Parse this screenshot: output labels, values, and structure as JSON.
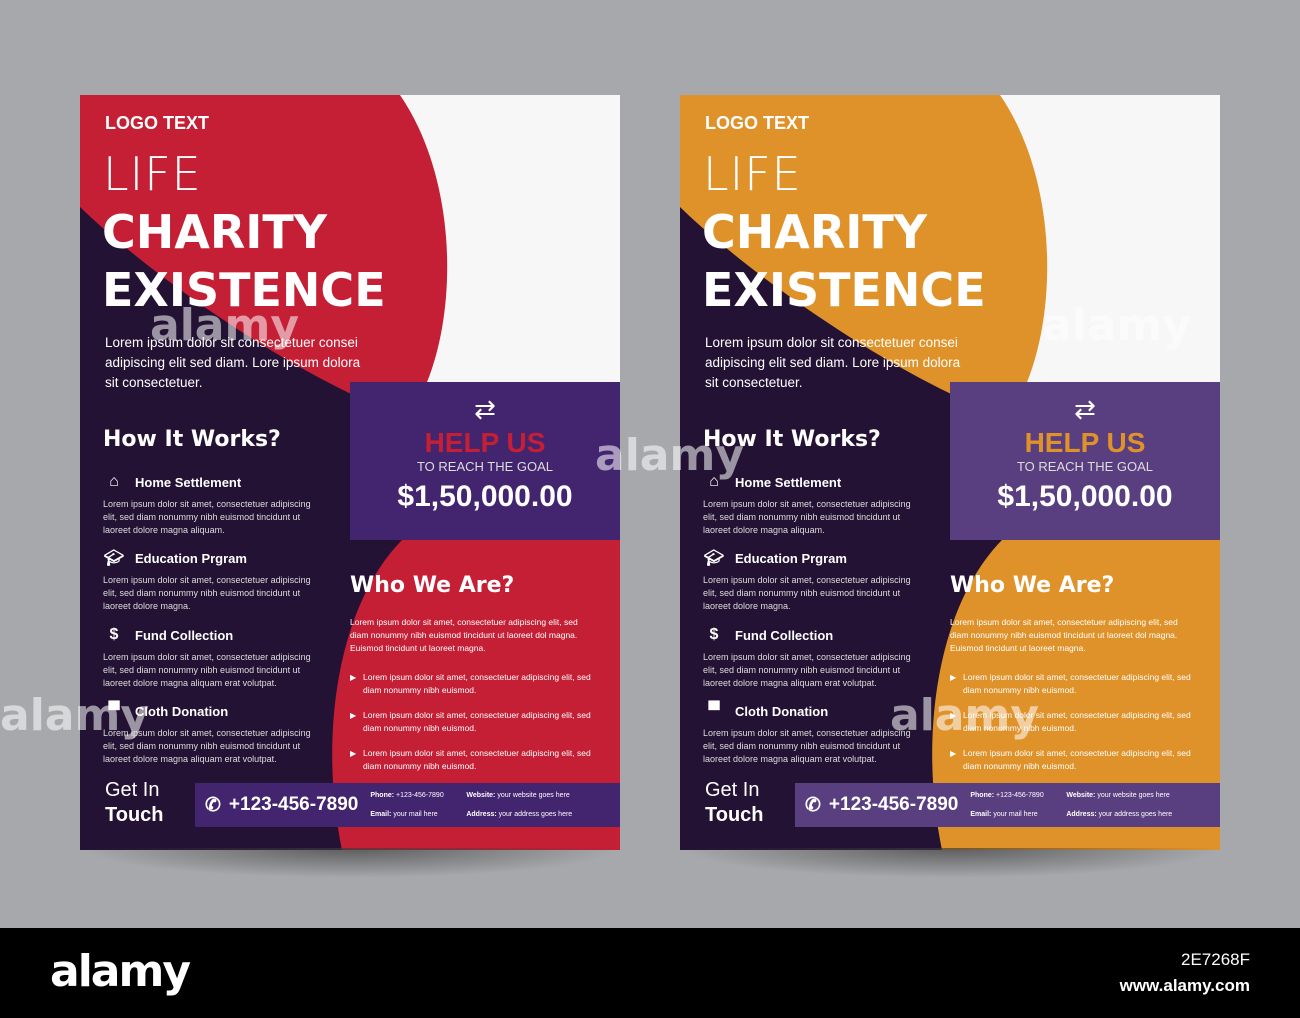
{
  "flyers": [
    {
      "accent": "#c41f35",
      "box": "#43246f",
      "logo": "LOGO TEXT",
      "l1": "LIFE",
      "l2": "CHARITY",
      "l3": "EXISTENCE",
      "intro": "Lorem ipsum dolor sit consectetuer consei adipiscing elit sed diam. Lore ipsum dolora sit consectetuer.",
      "how": "How It Works?",
      "items": [
        {
          "icon": "home-icon",
          "title": "Home Settlement",
          "desc": "Lorem ipsum dolor sit amet, consectetuer adipiscing elit, sed diam nonummy nibh euismod tincidunt ut laoreet dolore magna aliquam."
        },
        {
          "icon": "graduation-cap-icon",
          "title": "Education Prgram",
          "desc": "Lorem ipsum dolor sit amet, consectetuer adipiscing elit, sed diam nonummy nibh euismod tincidunt ut laoreet dolore magna."
        },
        {
          "icon": "money-bag-icon",
          "title": "Fund Collection",
          "desc": "Lorem ipsum dolor sit amet, consectetuer adipiscing elit, sed diam nonummy nibh euismod tincidunt ut laoreet dolore magna aliquam erat volutpat."
        },
        {
          "icon": "shirt-icon",
          "title": "Cloth Donation",
          "desc": "Lorem ipsum dolor sit amet, consectetuer adipiscing elit, sed diam nonummy nibh euismod tincidunt ut laoreet dolore magna aliquam erat volutpat."
        }
      ],
      "help": "HELP US",
      "reach": "TO REACH THE GOAL",
      "amount": "$1,50,000.00",
      "who": "Who We Are?",
      "who_text": "Lorem ipsum dolor sit amet, consectetuer adipiscing elit, sed diam nonummy nibh euismod tincidunt ut laoreet dol magna. Euismod tincidunt ut laoreet magna.",
      "bullets": [
        "Lorem ipsum dolor sit amet, consectetuer adipiscing elit, sed diam nonummy nibh euismod.",
        "Lorem ipsum dolor sit amet, consectetuer adipiscing elit, sed diam nonummy nibh euismod.",
        "Lorem ipsum dolor sit amet, consectetuer adipiscing elit, sed diam nonummy nibh euismod."
      ],
      "get": "Get In",
      "touch": "Touch",
      "phone": "+123-456-7890",
      "phone_label": "Phone:",
      "phone_val": "+123-456-7890",
      "web_label": "Website:",
      "web_val": "your website goes here",
      "email_label": "Email:",
      "email_val": "your mail here",
      "addr_label": "Address:",
      "addr_val": "your address goes here"
    },
    {
      "accent": "#e0922a",
      "box": "#5a3f80",
      "logo": "LOGO TEXT",
      "l1": "LIFE",
      "l2": "CHARITY",
      "l3": "EXISTENCE",
      "intro": "Lorem ipsum dolor sit consectetuer consei adipiscing elit sed diam. Lore ipsum dolora sit consectetuer.",
      "how": "How It Works?",
      "items": [
        {
          "icon": "home-icon",
          "title": "Home Settlement",
          "desc": "Lorem ipsum dolor sit amet, consectetuer adipiscing elit, sed diam nonummy nibh euismod tincidunt ut laoreet dolore magna aliquam."
        },
        {
          "icon": "graduation-cap-icon",
          "title": "Education Prgram",
          "desc": "Lorem ipsum dolor sit amet, consectetuer adipiscing elit, sed diam nonummy nibh euismod tincidunt ut laoreet dolore magna."
        },
        {
          "icon": "money-bag-icon",
          "title": "Fund Collection",
          "desc": "Lorem ipsum dolor sit amet, consectetuer adipiscing elit, sed diam nonummy nibh euismod tincidunt ut laoreet dolore magna aliquam erat volutpat."
        },
        {
          "icon": "shirt-icon",
          "title": "Cloth Donation",
          "desc": "Lorem ipsum dolor sit amet, consectetuer adipiscing elit, sed diam nonummy nibh euismod tincidunt ut laoreet dolore magna aliquam erat volutpat."
        }
      ],
      "help": "HELP US",
      "reach": "TO REACH THE GOAL",
      "amount": "$1,50,000.00",
      "who": "Who We Are?",
      "who_text": "Lorem ipsum dolor sit amet, consectetuer adipiscing elit, sed diam nonummy nibh euismod tincidunt ut laoreet dol magna. Euismod tincidunt ut laoreet magna.",
      "bullets": [
        "Lorem ipsum dolor sit amet, consectetuer adipiscing elit, sed diam nonummy nibh euismod.",
        "Lorem ipsum dolor sit amet, consectetuer adipiscing elit, sed diam nonummy nibh euismod.",
        "Lorem ipsum dolor sit amet, consectetuer adipiscing elit, sed diam nonummy nibh euismod."
      ],
      "get": "Get In",
      "touch": "Touch",
      "phone": "+123-456-7890",
      "phone_label": "Phone:",
      "phone_val": "+123-456-7890",
      "web_label": "Website:",
      "web_val": "your website goes here",
      "email_label": "Email:",
      "email_val": "your mail here",
      "addr_label": "Address:",
      "addr_val": "your address goes here"
    }
  ],
  "watermark": "alamy",
  "footer": {
    "logo": "alamy",
    "image_id": "2E7268F",
    "url": "www.alamy.com"
  }
}
